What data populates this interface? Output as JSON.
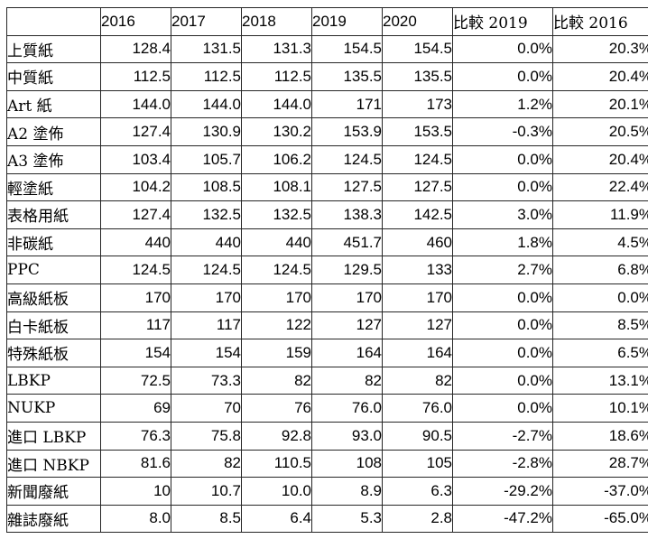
{
  "table": {
    "columns": [
      "",
      "2016",
      "2017",
      "2018",
      "2019",
      "2020",
      "比較 2019",
      "比較 2016"
    ],
    "rows": [
      {
        "label": "上質紙",
        "values": [
          "128.4",
          "131.5",
          "131.3",
          "154.5",
          "154.5",
          "0.0%",
          "20.3%"
        ]
      },
      {
        "label": "中質紙",
        "values": [
          "112.5",
          "112.5",
          "112.5",
          "135.5",
          "135.5",
          "0.0%",
          "20.4%"
        ]
      },
      {
        "label": "Art 紙",
        "values": [
          "144.0",
          "144.0",
          "144.0",
          "171",
          "173",
          "1.2%",
          "20.1%"
        ]
      },
      {
        "label": "A2 塗佈",
        "values": [
          "127.4",
          "130.9",
          "130.2",
          "153.9",
          "153.5",
          "-0.3%",
          "20.5%"
        ]
      },
      {
        "label": "A3 塗佈",
        "values": [
          "103.4",
          "105.7",
          "106.2",
          "124.5",
          "124.5",
          "0.0%",
          "20.4%"
        ]
      },
      {
        "label": "輕塗紙",
        "values": [
          "104.2",
          "108.5",
          "108.1",
          "127.5",
          "127.5",
          "0.0%",
          "22.4%"
        ]
      },
      {
        "label": "表格用紙",
        "values": [
          "127.4",
          "132.5",
          "132.5",
          "138.3",
          "142.5",
          "3.0%",
          "11.9%"
        ]
      },
      {
        "label": "非碳紙",
        "values": [
          "440",
          "440",
          "440",
          "451.7",
          "460",
          "1.8%",
          "4.5%"
        ]
      },
      {
        "label": "PPC",
        "values": [
          "124.5",
          "124.5",
          "124.5",
          "129.5",
          "133",
          "2.7%",
          "6.8%"
        ]
      },
      {
        "label": "高級紙板",
        "values": [
          "170",
          "170",
          "170",
          "170",
          "170",
          "0.0%",
          "0.0%"
        ]
      },
      {
        "label": "白卡紙板",
        "values": [
          "117",
          "117",
          "122",
          "127",
          "127",
          "0.0%",
          "8.5%"
        ]
      },
      {
        "label": "特殊紙板",
        "values": [
          "154",
          "154",
          "159",
          "164",
          "164",
          "0.0%",
          "6.5%"
        ]
      },
      {
        "label": "LBKP",
        "values": [
          "72.5",
          "73.3",
          "82",
          "82",
          "82",
          "0.0%",
          "13.1%"
        ]
      },
      {
        "label": "NUKP",
        "values": [
          "69",
          "70",
          "76",
          "76.0",
          "76.0",
          "0.0%",
          "10.1%"
        ]
      },
      {
        "label": "進口 LBKP",
        "values": [
          "76.3",
          "75.8",
          "92.8",
          "93.0",
          "90.5",
          "-2.7%",
          "18.6%"
        ]
      },
      {
        "label": "進口 NBKP",
        "values": [
          "81.6",
          "82",
          "110.5",
          "108",
          "105",
          "-2.8%",
          "28.7%"
        ]
      },
      {
        "label": "新聞廢紙",
        "values": [
          "10",
          "10.7",
          "10.0",
          "8.9",
          "6.3",
          "-29.2%",
          "-37.0%"
        ]
      },
      {
        "label": "雜誌廢紙",
        "values": [
          "8.0",
          "8.5",
          "6.4",
          "5.3",
          "2.8",
          "-47.2%",
          "-65.0%"
        ]
      }
    ]
  }
}
